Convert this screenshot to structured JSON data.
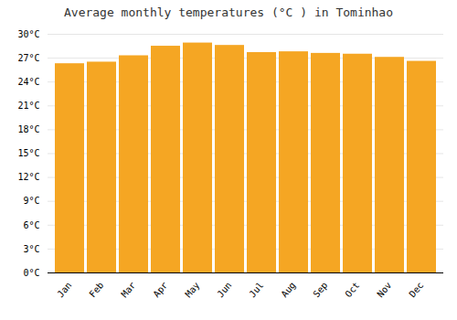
{
  "chart_data": {
    "type": "bar",
    "title": "Average monthly temperatures (°C ) in Tominhao",
    "categories": [
      "Jan",
      "Feb",
      "Mar",
      "Apr",
      "May",
      "Jun",
      "Jul",
      "Aug",
      "Sep",
      "Oct",
      "Nov",
      "Dec"
    ],
    "values": [
      26.3,
      26.5,
      27.3,
      28.5,
      28.9,
      28.6,
      27.7,
      27.8,
      27.6,
      27.5,
      27.1,
      26.6
    ],
    "color": "#F5A623",
    "ylim": [
      0,
      30
    ],
    "yticks": [
      {
        "value": 0,
        "label": "0°C"
      },
      {
        "value": 3,
        "label": "3°C"
      },
      {
        "value": 6,
        "label": "6°C"
      },
      {
        "value": 9,
        "label": "9°C"
      },
      {
        "value": 12,
        "label": "12°C"
      },
      {
        "value": 15,
        "label": "15°C"
      },
      {
        "value": 18,
        "label": "18°C"
      },
      {
        "value": 21,
        "label": "21°C"
      },
      {
        "value": 24,
        "label": "24°C"
      },
      {
        "value": 27,
        "label": "27°C"
      },
      {
        "value": 30,
        "label": "30°C"
      }
    ],
    "grid": true
  }
}
